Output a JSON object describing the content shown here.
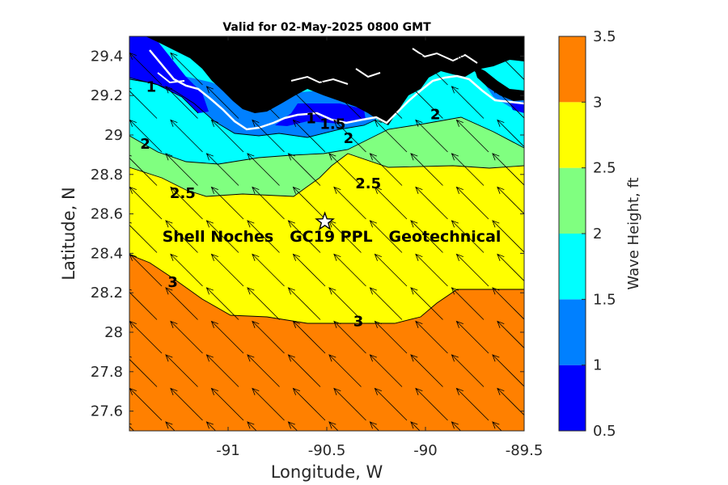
{
  "chart_data": {
    "type": "heatmap",
    "title": "Valid for 02-May-2025 0800 GMT",
    "xlabel": "Longitude, W",
    "ylabel": "Latitude, N",
    "xlim": [
      -91.5,
      -89.5
    ],
    "ylim": [
      27.5,
      29.5
    ],
    "xticks": [
      -91,
      -90.5,
      -90,
      -89.5
    ],
    "xtick_labels": [
      "-91",
      "-90.5",
      "-90",
      "-89.5"
    ],
    "yticks": [
      27.6,
      27.8,
      28,
      28.2,
      28.4,
      28.6,
      28.8,
      29,
      29.2,
      29.4
    ],
    "ytick_labels": [
      "27.6",
      "27.8",
      "28",
      "28.2",
      "28.4",
      "28.6",
      "28.8",
      "29",
      "29.2",
      "29.4"
    ],
    "colorbar": {
      "label": "Wave Height, ft",
      "levels": [
        0.5,
        1,
        1.5,
        2,
        2.5,
        3,
        3.5
      ],
      "tick_labels": [
        "0.5",
        "1",
        "1.5",
        "2",
        "2.5",
        "3",
        "3.5"
      ],
      "colors": [
        "#0000ff",
        "#0080ff",
        "#00ffff",
        "#80ff80",
        "#ffff00",
        "#ff8000"
      ]
    },
    "wave_direction_to_deg_from_north": 315,
    "contour_labels": [
      {
        "text": "1",
        "lon": -91.39,
        "lat": 29.22
      },
      {
        "text": "1",
        "lon": -90.58,
        "lat": 29.06
      },
      {
        "text": "1.5",
        "lon": -90.47,
        "lat": 29.03
      },
      {
        "text": "2",
        "lon": -91.42,
        "lat": 28.93
      },
      {
        "text": "2",
        "lon": -90.39,
        "lat": 28.96
      },
      {
        "text": "2",
        "lon": -89.95,
        "lat": 29.08
      },
      {
        "text": "2.5",
        "lon": -91.23,
        "lat": 28.68
      },
      {
        "text": "2.5",
        "lon": -90.29,
        "lat": 28.73
      },
      {
        "text": "3",
        "lon": -91.28,
        "lat": 28.23
      },
      {
        "text": "3",
        "lon": -90.34,
        "lat": 28.03
      }
    ],
    "site": {
      "lon": -90.51,
      "lat": 28.56,
      "label": "Shell Noches   GC19 PPL   Geotechnical"
    }
  }
}
